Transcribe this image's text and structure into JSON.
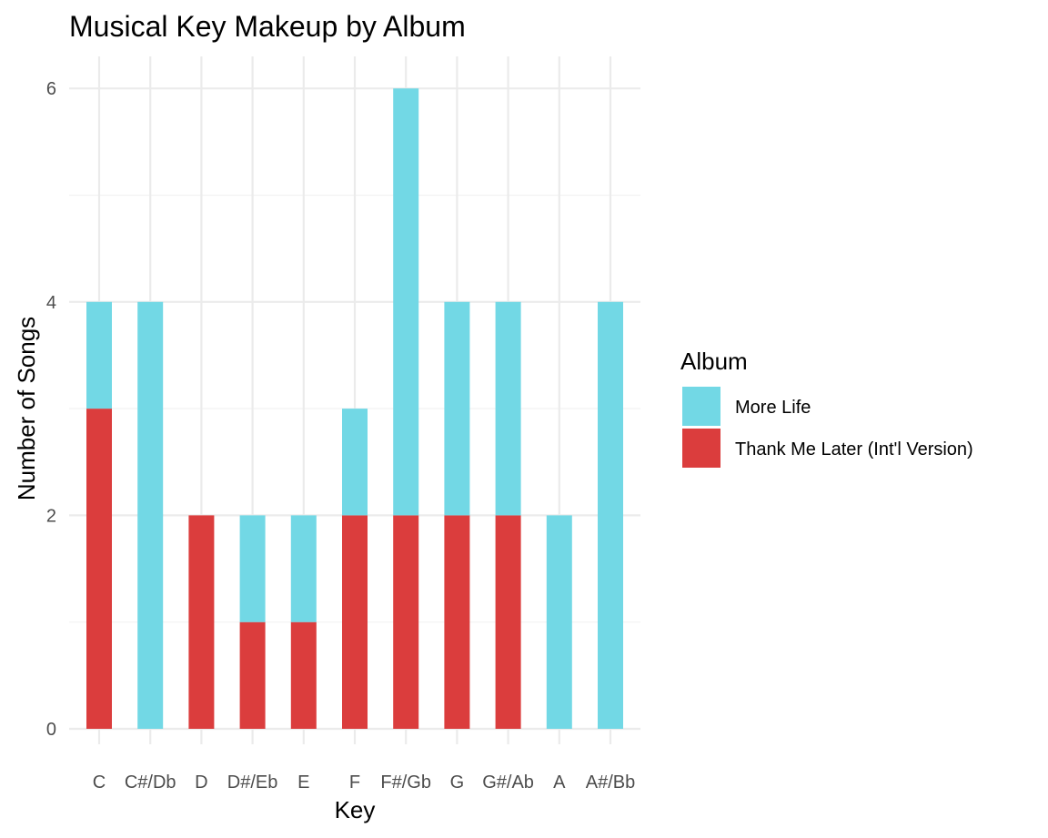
{
  "chart_data": {
    "type": "bar",
    "stacked": true,
    "title": "Musical Key Makeup by Album",
    "xlabel": "Key",
    "ylabel": "Number of Songs",
    "categories": [
      "C",
      "C#/Db",
      "D",
      "D#/Eb",
      "E",
      "F",
      "F#/Gb",
      "G",
      "G#/Ab",
      "A",
      "A#/Bb"
    ],
    "ylim": [
      0,
      6.3
    ],
    "yticks": [
      0,
      2,
      4,
      6
    ],
    "grid": true,
    "legend": {
      "title": "Album",
      "placement": "right"
    },
    "series": [
      {
        "name": "Thank Me Later (Int'l Version)",
        "color": "#db3d3d",
        "values": [
          3,
          0,
          2,
          1,
          1,
          2,
          2,
          2,
          2,
          0,
          0
        ]
      },
      {
        "name": "More Life",
        "color": "#72d8e5",
        "values": [
          1,
          4,
          0,
          1,
          1,
          1,
          4,
          2,
          2,
          2,
          4
        ]
      }
    ],
    "legend_order": [
      "More Life",
      "Thank Me Later (Int'l Version)"
    ]
  }
}
